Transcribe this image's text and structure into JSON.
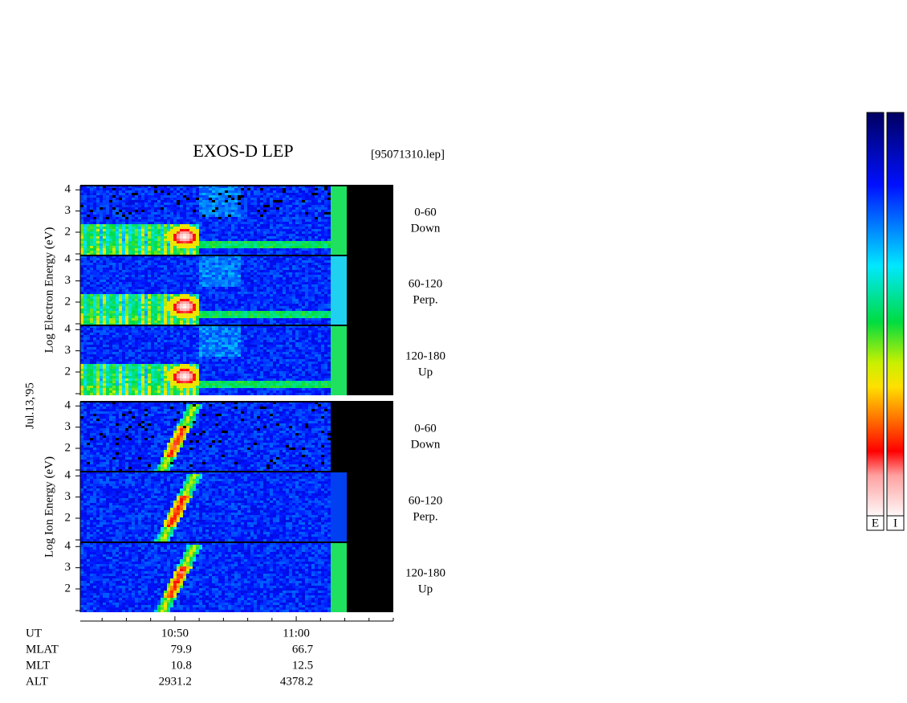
{
  "chart_data": {
    "type": "spectrogram",
    "title": "EXOS-D LEP",
    "file_label": "[95071310.lep]",
    "date_label": "Jul.13,'95",
    "electron_axis_label": "Log Electron Energy (eV)",
    "ion_axis_label": "Log Ion Energy (eV)",
    "ylim": [
      0.9,
      4.2
    ],
    "yticks": [
      2,
      3,
      4
    ],
    "panels": [
      {
        "range": "0-60",
        "direction": "Down"
      },
      {
        "range": "60-120",
        "direction": "Perp."
      },
      {
        "range": "120-180",
        "direction": "Up"
      }
    ],
    "xlim": [
      642.2,
      668
    ],
    "xticks": [
      {
        "value": 650,
        "label": "10:50"
      },
      {
        "value": 660,
        "label": "11:00"
      }
    ],
    "xminor_ticks": [
      644,
      646,
      648,
      652,
      654,
      656,
      658,
      662,
      664,
      666,
      668
    ],
    "orbit_rows": [
      {
        "name": "UT"
      },
      {
        "name": "MLAT",
        "values": [
          "79.9",
          "66.7"
        ]
      },
      {
        "name": "MLT",
        "values": [
          "10.8",
          "12.5"
        ]
      },
      {
        "name": "ALT",
        "values": [
          "2931.2",
          "4378.2"
        ]
      }
    ],
    "colorbar_labels": [
      "E",
      "I"
    ]
  }
}
